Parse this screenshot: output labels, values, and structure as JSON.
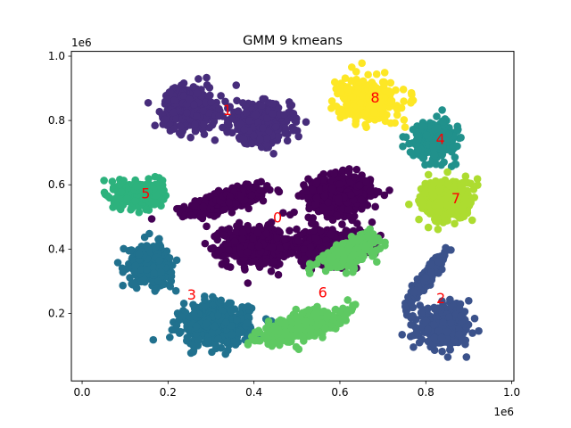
{
  "chart_data": {
    "type": "scatter",
    "title": "GMM 9 kmeans",
    "xlabel": "",
    "ylabel": "",
    "xlim": [
      -25000,
      1005000
    ],
    "ylim": [
      -10000,
      1015000
    ],
    "x_scale_label": "1e6",
    "y_scale_label": "1e6",
    "x_ticks": [
      0.0,
      0.2,
      0.4,
      0.6,
      0.8,
      1.0
    ],
    "x_tick_labels": [
      "0.0",
      "0.2",
      "0.4",
      "0.6",
      "0.8",
      "1.0"
    ],
    "y_ticks": [
      0.2,
      0.4,
      0.6,
      0.8,
      1.0
    ],
    "y_tick_labels": [
      "0.2",
      "0.4",
      "0.6",
      "0.8",
      "1.0"
    ],
    "grid": false,
    "legend": "none",
    "clusters": [
      {
        "label": "0",
        "color": "#440154",
        "blobs": [
          {
            "cx": 335000,
            "cy": 550000,
            "sx": 45000,
            "sy": 14000,
            "rot": 0.35,
            "n": 520
          },
          {
            "cx": 405000,
            "cy": 410000,
            "sx": 38000,
            "sy": 30000,
            "rot": 0.0,
            "n": 520
          },
          {
            "cx": 600000,
            "cy": 570000,
            "sx": 36000,
            "sy": 30000,
            "rot": 0.0,
            "n": 520
          },
          {
            "cx": 580000,
            "cy": 410000,
            "sx": 40000,
            "sy": 28000,
            "rot": 0.0,
            "n": 420
          }
        ],
        "label_pos": [
          455000,
          495000
        ]
      },
      {
        "label": "1",
        "color": "#472d7b",
        "blobs": [
          {
            "cx": 250000,
            "cy": 840000,
            "sx": 30000,
            "sy": 32000,
            "rot": 0.0,
            "n": 420
          },
          {
            "cx": 415000,
            "cy": 790000,
            "sx": 35000,
            "sy": 30000,
            "rot": 0.0,
            "n": 420
          }
        ],
        "label_pos": [
          338000,
          830000
        ]
      },
      {
        "label": "2",
        "color": "#3b528b",
        "blobs": [
          {
            "cx": 845000,
            "cy": 160000,
            "sx": 30000,
            "sy": 28000,
            "rot": 0.0,
            "n": 420
          },
          {
            "cx": 800000,
            "cy": 310000,
            "sx": 40000,
            "sy": 6000,
            "rot": 1.1,
            "n": 260
          }
        ],
        "label_pos": [
          835000,
          245000
        ]
      },
      {
        "label": "3",
        "color": "#21718e",
        "blobs": [
          {
            "cx": 310000,
            "cy": 165000,
            "sx": 40000,
            "sy": 32000,
            "rot": 0.0,
            "n": 480
          },
          {
            "cx": 160000,
            "cy": 350000,
            "sx": 25000,
            "sy": 32000,
            "rot": 0.0,
            "n": 320
          }
        ],
        "label_pos": [
          255000,
          255000
        ]
      },
      {
        "label": "4",
        "color": "#21918c",
        "blobs": [
          {
            "cx": 820000,
            "cy": 740000,
            "sx": 25000,
            "sy": 28000,
            "rot": 0.0,
            "n": 320
          }
        ],
        "label_pos": [
          834000,
          740000
        ]
      },
      {
        "label": "5",
        "color": "#2db27d",
        "blobs": [
          {
            "cx": 135000,
            "cy": 570000,
            "sx": 26000,
            "sy": 20000,
            "rot": 0.0,
            "n": 360
          }
        ],
        "label_pos": [
          148000,
          570000
        ]
      },
      {
        "label": "6",
        "color": "#5ec962",
        "blobs": [
          {
            "cx": 510000,
            "cy": 160000,
            "sx": 48000,
            "sy": 18000,
            "rot": 0.4,
            "n": 420
          },
          {
            "cx": 620000,
            "cy": 390000,
            "sx": 38000,
            "sy": 18000,
            "rot": 0.6,
            "n": 300
          }
        ],
        "label_pos": [
          560000,
          262000
        ]
      },
      {
        "label": "7",
        "color": "#addc30",
        "blobs": [
          {
            "cx": 850000,
            "cy": 550000,
            "sx": 30000,
            "sy": 32000,
            "rot": 0.0,
            "n": 420
          }
        ],
        "label_pos": [
          870000,
          555000
        ]
      },
      {
        "label": "8",
        "color": "#fde725",
        "blobs": [
          {
            "cx": 665000,
            "cy": 865000,
            "sx": 32000,
            "sy": 30000,
            "rot": 0.0,
            "n": 380
          }
        ],
        "label_pos": [
          682000,
          868000
        ]
      }
    ]
  }
}
